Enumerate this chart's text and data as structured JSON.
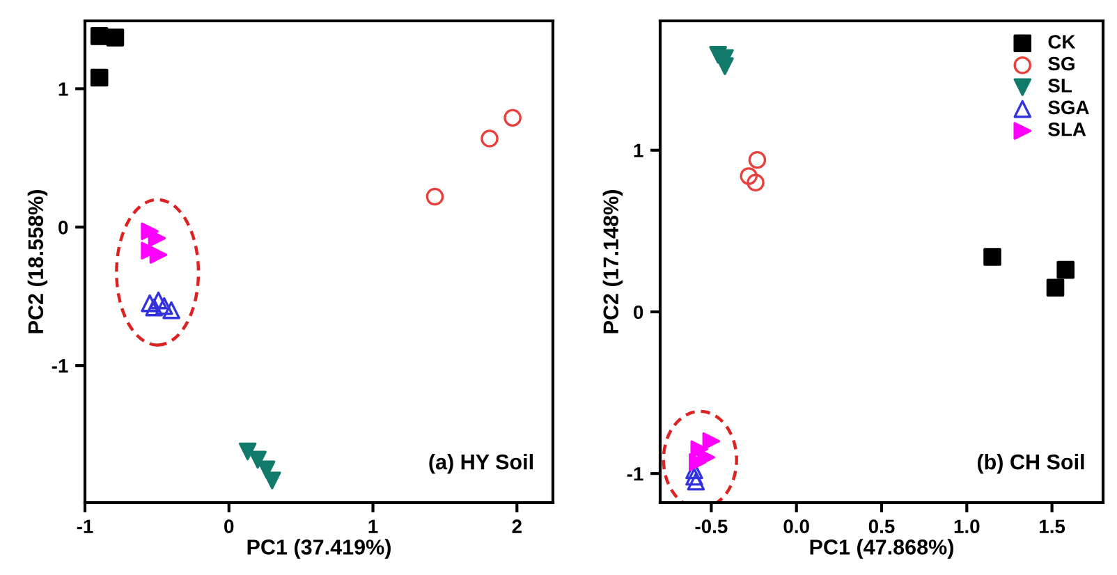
{
  "chart_data": [
    {
      "type": "scatter",
      "xlabel": "PC1 (37.419%)",
      "ylabel": "PC2 (18.558%)",
      "xlim": [
        -1,
        2.25
      ],
      "ylim": [
        -1.99,
        1.49
      ],
      "xticks": [
        -1,
        0,
        1,
        2
      ],
      "yticks": [
        -1,
        0,
        1
      ],
      "grid": false,
      "legend": false,
      "annotations": [
        "(a) HY Soil"
      ],
      "series": [
        {
          "marker": "square",
          "color": "#000000",
          "x": [
            -0.9,
            -0.79,
            -0.9
          ],
          "values": [
            1.38,
            1.37,
            1.08
          ]
        },
        {
          "marker": "circle",
          "color": "#e8403c",
          "x": [
            1.43,
            1.81,
            1.97
          ],
          "values": [
            0.22,
            0.64,
            0.79
          ]
        },
        {
          "marker": "triangle_down",
          "color": "#127a6b",
          "x": [
            0.13,
            0.2,
            0.26,
            0.3
          ],
          "values": [
            -1.62,
            -1.68,
            -1.75,
            -1.83
          ]
        },
        {
          "marker": "triangle_up",
          "color": "#3333dd",
          "x": [
            -0.55,
            -0.49,
            -0.45,
            -0.4,
            -0.52
          ],
          "values": [
            -0.55,
            -0.53,
            -0.57,
            -0.6,
            -0.58
          ]
        },
        {
          "marker": "triangle_right",
          "color": "#ff00ff",
          "x": [
            -0.55,
            -0.5,
            -0.49,
            -0.55
          ],
          "values": [
            -0.03,
            -0.08,
            -0.2,
            -0.17
          ]
        }
      ]
    },
    {
      "type": "scatter",
      "xlabel": "PC1 (47.868%)",
      "ylabel": "PC2 (17.148%)",
      "xlim": [
        -0.8,
        1.8
      ],
      "ylim": [
        -1.18,
        1.8
      ],
      "xticks": [
        {
          "value": -0.5,
          "label": "-0.5"
        },
        {
          "value": 0,
          "label": "0.0"
        },
        0.5,
        {
          "value": 1,
          "label": "1.0"
        },
        1.5
      ],
      "yticks": [
        -1,
        0,
        1
      ],
      "grid": false,
      "legend": "top right",
      "annotations": [
        "(b) CH Soil"
      ],
      "series": [
        {
          "name": "CK",
          "marker": "square",
          "color": "#000000",
          "x": [
            1.15,
            1.52,
            1.58
          ],
          "values": [
            0.34,
            0.15,
            0.26
          ]
        },
        {
          "name": "SG",
          "marker": "circle",
          "color": "#e8403c",
          "x": [
            -0.23,
            -0.28,
            -0.24
          ],
          "values": [
            0.94,
            0.84,
            0.8
          ]
        },
        {
          "name": "SL",
          "marker": "triangle_down",
          "color": "#127a6b",
          "x": [
            -0.46,
            -0.42,
            -0.42
          ],
          "values": [
            1.59,
            1.57,
            1.52
          ]
        },
        {
          "name": "SGA",
          "marker": "triangle_up",
          "color": "#3333dd",
          "x": [
            -0.6,
            -0.6,
            -0.59
          ],
          "values": [
            -0.98,
            -1.02,
            -1.05
          ]
        },
        {
          "name": "SLA",
          "marker": "triangle_right",
          "color": "#ff00ff",
          "x": [
            -0.5,
            -0.53,
            -0.57,
            -0.58
          ],
          "values": [
            -0.8,
            -0.9,
            -0.85,
            -0.93
          ]
        }
      ]
    }
  ]
}
